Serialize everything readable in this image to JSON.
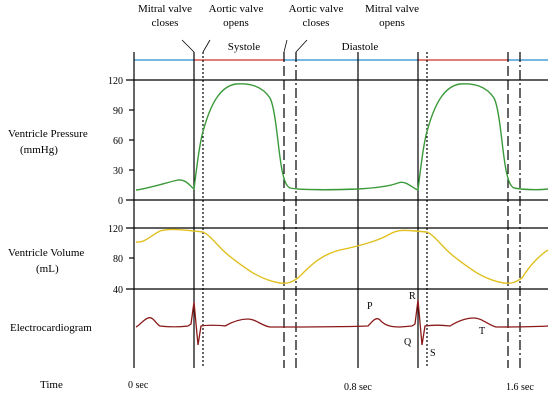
{
  "events": {
    "mitral_closes": [
      "Mitral valve",
      "closes"
    ],
    "aortic_opens": [
      "Aortic valve",
      "opens"
    ],
    "aortic_closes": [
      "Aortic valve",
      "closes"
    ],
    "mitral_opens": [
      "Mitral valve",
      "opens"
    ]
  },
  "phases": {
    "systole": "Systole",
    "diastole": "Diastole"
  },
  "colors": {
    "systole_bar": "#d9534f",
    "diastole_bar": "#4a9fd8",
    "pressure": "#3a9a3a",
    "volume": "#e0c020",
    "ecg": "#8b1a1a"
  },
  "panels": {
    "pressure": {
      "label": [
        "Ventricle Pressure",
        "(mmHg)"
      ],
      "ticks": [
        "120",
        "90",
        "60",
        "30",
        "0"
      ]
    },
    "volume": {
      "label": [
        "Ventricle Volume",
        "(mL)"
      ],
      "ticks": [
        "120",
        "80",
        "40"
      ]
    },
    "ecg": {
      "label": "Electrocardiogram",
      "waves": [
        "P",
        "R",
        "Q",
        "S",
        "T"
      ]
    }
  },
  "time": {
    "label": "Time",
    "ticks": [
      "0 sec",
      "0.8 sec",
      "1.6 sec"
    ]
  }
}
